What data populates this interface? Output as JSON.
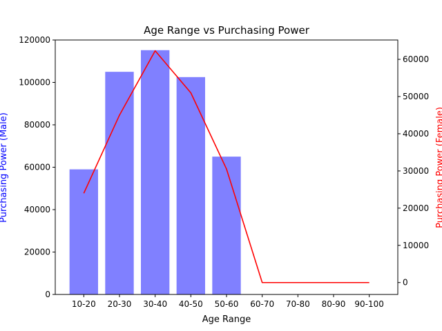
{
  "chart_data": {
    "type": "bar",
    "title": "Age Range vs Purchasing Power",
    "xlabel": "Age Range",
    "ylabel_left": "Purchasing Power (Male)",
    "ylabel_right": "Purchasing Power (Female)",
    "categories": [
      "10-20",
      "20-30",
      "30-40",
      "40-50",
      "50-60",
      "60-70",
      "70-80",
      "80-90",
      "90-100"
    ],
    "series": [
      {
        "name": "Male",
        "type": "bar",
        "axis": "left",
        "color": "#8080ff",
        "values": [
          59000,
          105000,
          115200,
          102500,
          65000,
          0,
          0,
          0,
          0
        ]
      },
      {
        "name": "Female",
        "type": "line",
        "axis": "right",
        "color": "#ff0000",
        "values": [
          24000,
          45000,
          62300,
          51000,
          30500,
          0,
          0,
          0,
          0
        ]
      }
    ],
    "ylim_left": [
      0,
      120000
    ],
    "yticks_left": [
      0,
      20000,
      40000,
      60000,
      80000,
      100000,
      120000
    ],
    "ylim_right": [
      -3200,
      65200
    ],
    "yticks_right": [
      0,
      10000,
      20000,
      30000,
      40000,
      50000,
      60000
    ],
    "grid": false,
    "legend": "none"
  }
}
